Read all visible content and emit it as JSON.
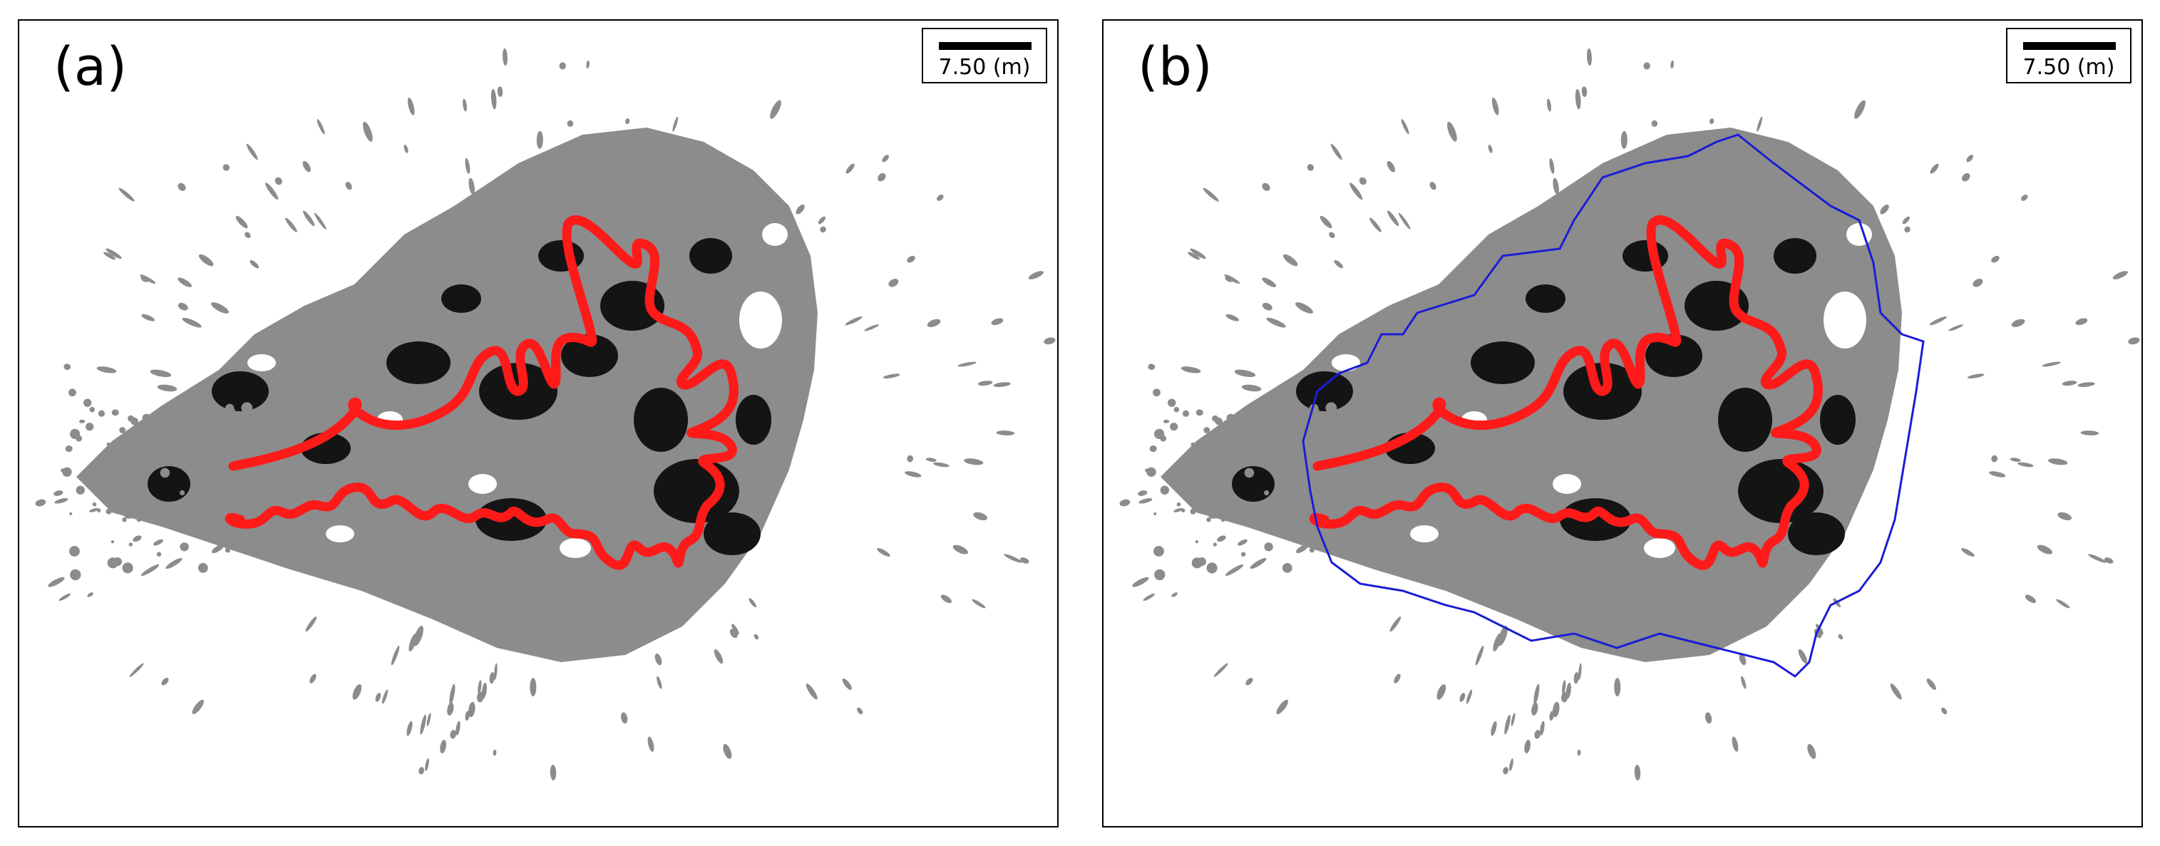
{
  "panels": [
    {
      "label": "(a)",
      "scalebar_text": "7.50 (m)",
      "show_boundary": false
    },
    {
      "label": "(b)",
      "scalebar_text": "7.50 (m)",
      "show_boundary": true
    }
  ],
  "colors": {
    "trajectory": "#ff1a1a",
    "boundary": "#1c1cd6",
    "point_cloud_gray": "#8c8c8c",
    "point_cloud_dark": "#141414",
    "background": "#ffffff",
    "frame": "#000000"
  }
}
